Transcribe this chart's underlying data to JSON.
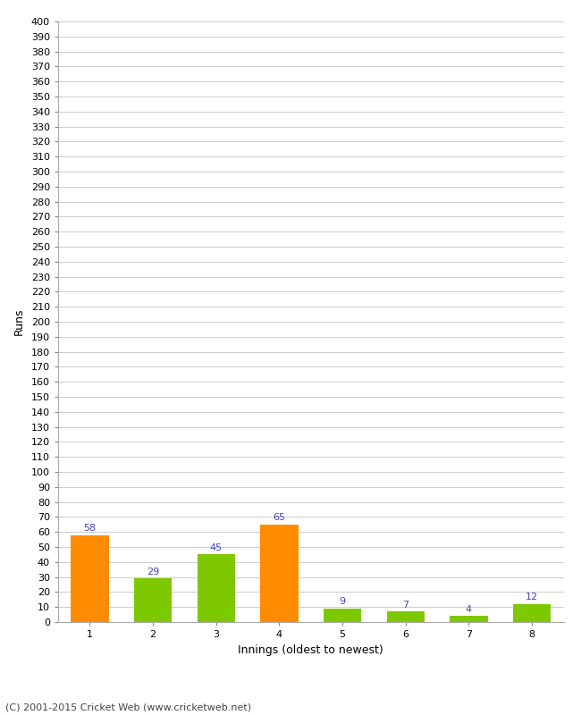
{
  "xlabel": "Innings (oldest to newest)",
  "ylabel": "Runs",
  "categories": [
    "1",
    "2",
    "3",
    "4",
    "5",
    "6",
    "7",
    "8"
  ],
  "values": [
    58,
    29,
    45,
    65,
    9,
    7,
    4,
    12
  ],
  "bar_colors": [
    "#ff8c00",
    "#7dc800",
    "#7dc800",
    "#ff8c00",
    "#7dc800",
    "#7dc800",
    "#7dc800",
    "#7dc800"
  ],
  "ylim": [
    0,
    400
  ],
  "ytick_step": 10,
  "value_label_color": "#4444bb",
  "footer": "(C) 2001-2015 Cricket Web (www.cricketweb.net)",
  "bg_color": "#ffffff",
  "grid_color": "#cccccc",
  "axis_label_fontsize": 9,
  "tick_fontsize": 8,
  "value_fontsize": 8,
  "footer_fontsize": 8
}
